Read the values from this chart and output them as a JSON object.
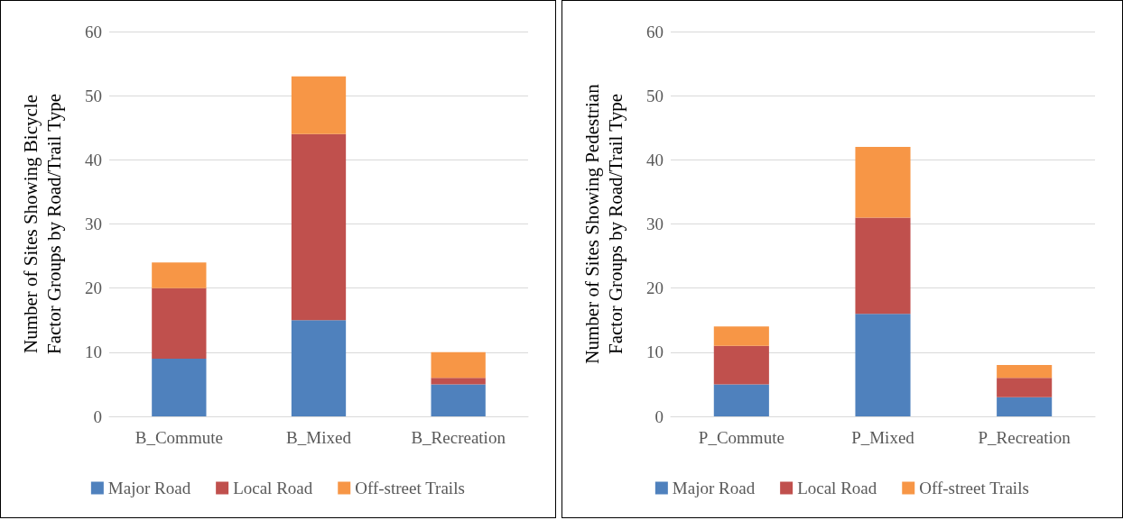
{
  "chart_data": [
    {
      "type": "bar",
      "stacked": true,
      "ylabel": "Number of Sites Showing Bicycle Factor Groups by Road/Trail Type",
      "categories": [
        "B_Commute",
        "B_Mixed",
        "B_Recreation"
      ],
      "ylim": [
        0,
        60
      ],
      "yticks": [
        0,
        10,
        20,
        30,
        40,
        50,
        60
      ],
      "grid": "y",
      "legend": "bottom",
      "series": [
        {
          "name": "Major Road",
          "color": "#4f81bd",
          "values": [
            9,
            15,
            5
          ]
        },
        {
          "name": "Local Road",
          "color": "#c0504d",
          "values": [
            11,
            29,
            1
          ]
        },
        {
          "name": "Off-street Trails",
          "color": "#f79646",
          "values": [
            4,
            9,
            4
          ]
        }
      ]
    },
    {
      "type": "bar",
      "stacked": true,
      "ylabel": "Number of Sites Showing Pedestrian Factor Groups by Road/Trail Type",
      "categories": [
        "P_Commute",
        "P_Mixed",
        "P_Recreation"
      ],
      "ylim": [
        0,
        60
      ],
      "yticks": [
        0,
        10,
        20,
        30,
        40,
        50,
        60
      ],
      "grid": "y",
      "legend": "bottom",
      "series": [
        {
          "name": "Major Road",
          "color": "#4f81bd",
          "values": [
            5,
            16,
            3
          ]
        },
        {
          "name": "Local Road",
          "color": "#c0504d",
          "values": [
            6,
            15,
            3
          ]
        },
        {
          "name": "Off-street Trails",
          "color": "#f79646",
          "values": [
            3,
            11,
            2
          ]
        }
      ]
    }
  ]
}
